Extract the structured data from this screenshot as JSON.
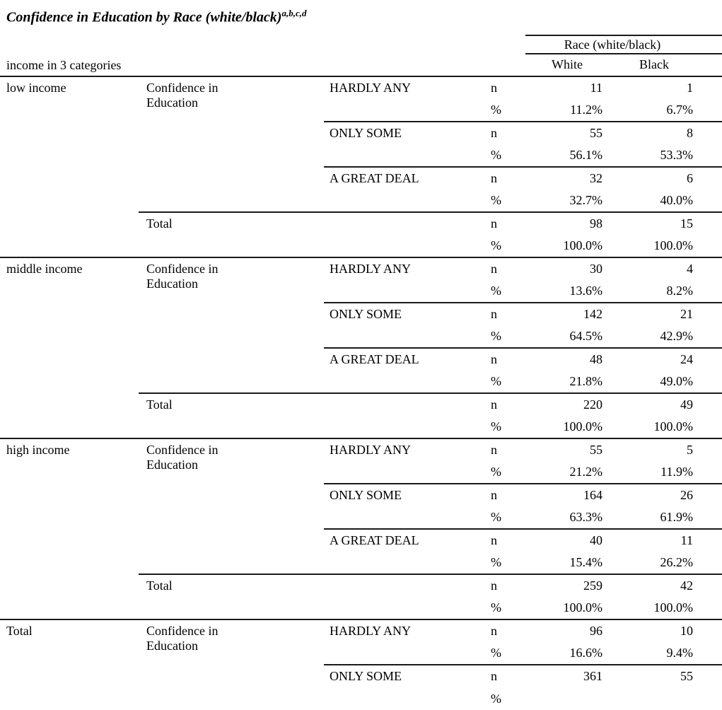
{
  "page": {
    "background": "#ffffff",
    "line_color": "#1a1a1a"
  },
  "title": {
    "text": "Confidence in Education by Race (white/black)",
    "superscript": "a,b,c,d"
  },
  "table": {
    "race_group_header": "Race (white/black)",
    "race_columns": [
      "White",
      "Black"
    ],
    "row_dimension_label": "income in 3 categories",
    "confidence_row_label": "Confidence in Education",
    "total_row_label": "Total",
    "stat_count_label": "n",
    "stat_percent_label": "%",
    "groups": [
      {
        "income": "low income",
        "rows": [
          {
            "level": "HARDLY ANY",
            "n": [
              "11",
              "1"
            ],
            "pct": [
              "11.2%",
              "6.7%"
            ]
          },
          {
            "level": "ONLY SOME",
            "n": [
              "55",
              "8"
            ],
            "pct": [
              "56.1%",
              "53.3%"
            ]
          },
          {
            "level": "A GREAT DEAL",
            "n": [
              "32",
              "6"
            ],
            "pct": [
              "32.7%",
              "40.0%"
            ]
          }
        ],
        "total": {
          "n": [
            "98",
            "15"
          ],
          "pct": [
            "100.0%",
            "100.0%"
          ]
        }
      },
      {
        "income": "middle income",
        "rows": [
          {
            "level": "HARDLY ANY",
            "n": [
              "30",
              "4"
            ],
            "pct": [
              "13.6%",
              "8.2%"
            ]
          },
          {
            "level": "ONLY SOME",
            "n": [
              "142",
              "21"
            ],
            "pct": [
              "64.5%",
              "42.9%"
            ]
          },
          {
            "level": "A GREAT DEAL",
            "n": [
              "48",
              "24"
            ],
            "pct": [
              "21.8%",
              "49.0%"
            ]
          }
        ],
        "total": {
          "n": [
            "220",
            "49"
          ],
          "pct": [
            "100.0%",
            "100.0%"
          ]
        }
      },
      {
        "income": "high income",
        "rows": [
          {
            "level": "HARDLY ANY",
            "n": [
              "55",
              "5"
            ],
            "pct": [
              "21.2%",
              "11.9%"
            ]
          },
          {
            "level": "ONLY SOME",
            "n": [
              "164",
              "26"
            ],
            "pct": [
              "63.3%",
              "61.9%"
            ]
          },
          {
            "level": "A GREAT DEAL",
            "n": [
              "40",
              "11"
            ],
            "pct": [
              "15.4%",
              "26.2%"
            ]
          }
        ],
        "total": {
          "n": [
            "259",
            "42"
          ],
          "pct": [
            "100.0%",
            "100.0%"
          ]
        }
      },
      {
        "income": "Total",
        "rows": [
          {
            "level": "HARDLY ANY",
            "n": [
              "96",
              "10"
            ],
            "pct": [
              "16.6%",
              "9.4%"
            ]
          },
          {
            "level": "ONLY SOME",
            "n": [
              "361",
              "55"
            ],
            "pct": [
              "",
              ""
            ]
          }
        ],
        "total": null
      }
    ]
  }
}
